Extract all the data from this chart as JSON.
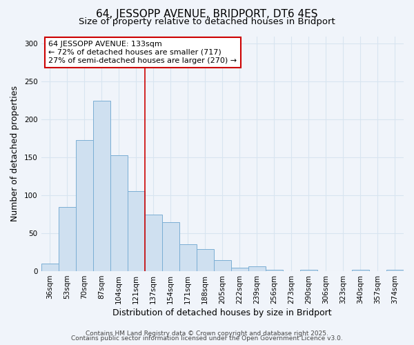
{
  "title": "64, JESSOPP AVENUE, BRIDPORT, DT6 4ES",
  "subtitle": "Size of property relative to detached houses in Bridport",
  "xlabel": "Distribution of detached houses by size in Bridport",
  "ylabel": "Number of detached properties",
  "bar_labels": [
    "36sqm",
    "53sqm",
    "70sqm",
    "87sqm",
    "104sqm",
    "121sqm",
    "137sqm",
    "154sqm",
    "171sqm",
    "188sqm",
    "205sqm",
    "222sqm",
    "239sqm",
    "256sqm",
    "273sqm",
    "290sqm",
    "306sqm",
    "323sqm",
    "340sqm",
    "357sqm",
    "374sqm"
  ],
  "bar_values": [
    10,
    85,
    173,
    225,
    153,
    106,
    75,
    65,
    36,
    29,
    15,
    5,
    6,
    2,
    0,
    2,
    0,
    0,
    2,
    0,
    2
  ],
  "bar_color": "#cfe0f0",
  "bar_edge_color": "#7aaed4",
  "reference_line_x": 6.0,
  "reference_line_color": "#cc0000",
  "annotation_title": "64 JESSOPP AVENUE: 133sqm",
  "annotation_line1": "← 72% of detached houses are smaller (717)",
  "annotation_line2": "27% of semi-detached houses are larger (270) →",
  "annotation_box_color": "#ffffff",
  "annotation_box_edge_color": "#cc0000",
  "ylim": [
    0,
    310
  ],
  "yticks": [
    0,
    50,
    100,
    150,
    200,
    250,
    300
  ],
  "background_color": "#f0f4fa",
  "plot_bg_color": "#f0f4fa",
  "grid_color": "#d8e4f0",
  "footer1": "Contains HM Land Registry data © Crown copyright and database right 2025.",
  "footer2": "Contains public sector information licensed under the Open Government Licence v3.0.",
  "title_fontsize": 11,
  "subtitle_fontsize": 9.5,
  "axis_label_fontsize": 9,
  "tick_fontsize": 7.5,
  "annotation_fontsize": 8,
  "footer_fontsize": 6.5
}
